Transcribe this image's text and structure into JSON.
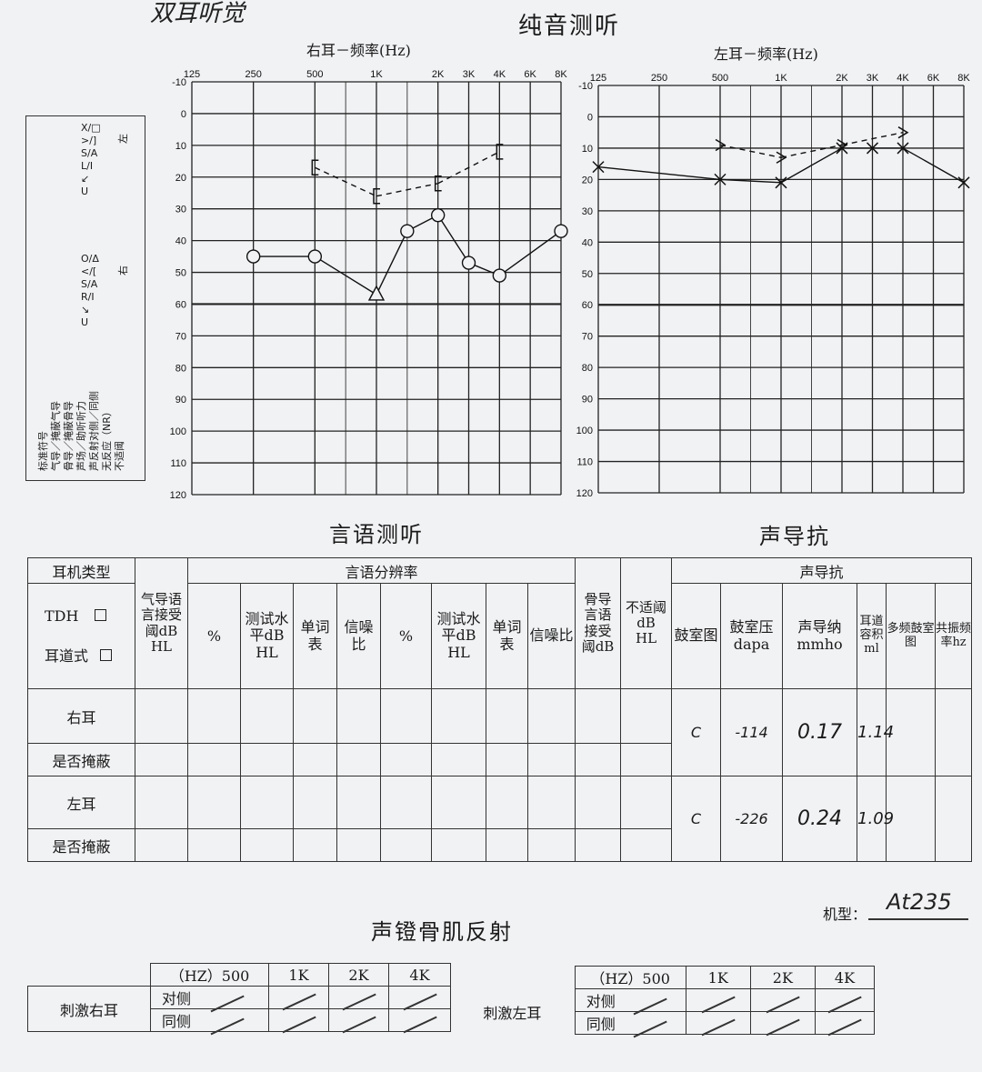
{
  "handwritten_top": "双耳听觉",
  "pure_tone": {
    "title": "纯音测听",
    "right_title": "右耳－频率(Hz)",
    "left_title": "左耳－频率(Hz)",
    "freq_labels": [
      "125",
      "250",
      "500",
      "1K",
      "2K",
      "3K",
      "4K",
      "6K",
      "8K"
    ],
    "db_labels": [
      "-10",
      "0",
      "10",
      "20",
      "30",
      "40",
      "50",
      "60",
      "70",
      "80",
      "90",
      "100",
      "110",
      "120"
    ]
  },
  "legend": {
    "title": "标准符号",
    "rows": [
      "气导／掩蔽气导",
      "骨导／掩蔽骨导",
      "声场／助听听力",
      "声反射对侧／同侧",
      "无反应（NR）",
      "不适阈"
    ],
    "col_left_header": "左",
    "col_right_header": "右",
    "left_symbols": [
      "X/□",
      ">/]",
      "S/A",
      "L/I",
      "↙",
      "U"
    ],
    "right_symbols": [
      "O/Δ",
      "</[",
      "S/A",
      "R/I",
      "↘",
      "U"
    ]
  },
  "chart_data": [
    {
      "type": "line",
      "title": "右耳－频率(Hz)",
      "x": [
        "125",
        "250",
        "500",
        "1K",
        "2K",
        "3K",
        "4K",
        "6K",
        "8K"
      ],
      "ylim": [
        120,
        -10
      ],
      "series": [
        {
          "symbol": "O/Δ",
          "points": [
            [
              "250",
              45
            ],
            [
              "500",
              45
            ],
            [
              "1K",
              57
            ],
            [
              "1.5K",
              37
            ],
            [
              "2K",
              32
            ],
            [
              "3K",
              47
            ],
            [
              "4K",
              51
            ],
            [
              "8K",
              37
            ]
          ]
        },
        {
          "symbol": "[",
          "points": [
            [
              "500",
              17
            ],
            [
              "1K",
              26
            ],
            [
              "2K",
              22
            ],
            [
              "4K",
              12
            ]
          ]
        }
      ]
    },
    {
      "type": "line",
      "title": "左耳－频率(Hz)",
      "x": [
        "125",
        "250",
        "500",
        "1K",
        "2K",
        "3K",
        "4K",
        "6K",
        "8K"
      ],
      "ylim": [
        120,
        -10
      ],
      "series": [
        {
          "symbol": "X",
          "points": [
            [
              "125",
              16
            ],
            [
              "500",
              20
            ],
            [
              "1K",
              21
            ],
            [
              "2K",
              10
            ],
            [
              "3K",
              10
            ],
            [
              "4K",
              10
            ],
            [
              "8K",
              21
            ]
          ]
        },
        {
          "symbol": ">",
          "points": [
            [
              "500",
              9
            ],
            [
              "1K",
              13
            ],
            [
              "2K",
              9
            ],
            [
              "4K",
              5
            ]
          ]
        }
      ]
    }
  ],
  "speech": {
    "title": "言语测听",
    "headphone_type": "耳机类型",
    "tdh": "TDH",
    "insert": "耳道式",
    "air_srt": "气导语言接受阈dB HL",
    "discrimination": "言语分辨率",
    "percent": "%",
    "test_level": "测试水平dB HL",
    "word_list": "单词表",
    "snr": "信噪比",
    "bone_srt": "骨导言语接受阈dB",
    "ucl": "不适阈dB HL",
    "rows": [
      "右耳",
      "是否掩蔽",
      "左耳",
      "是否掩蔽"
    ]
  },
  "impedance": {
    "title": "声导抗",
    "headers": [
      "鼓室图",
      "鼓室压dapa",
      "声导纳mmho",
      "耳道容积ml",
      "多频鼓室图",
      "共振频率hz"
    ],
    "right": {
      "type": "C",
      "pressure": "-114",
      "admittance": "0.17",
      "volume": "1.14"
    },
    "left": {
      "type": "C",
      "pressure": "-226",
      "admittance": "0.24",
      "volume": "1.09"
    }
  },
  "model": {
    "label": "机型：",
    "value": "At235"
  },
  "reflex": {
    "title": "声镫骨肌反射",
    "right_label": "刺激右耳",
    "left_label": "刺激左耳",
    "freq_header": "（HZ）500",
    "freqs": [
      "1K",
      "2K",
      "4K"
    ],
    "contra": "对侧",
    "ipsi": "同侧"
  }
}
